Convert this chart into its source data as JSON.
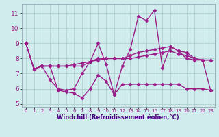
{
  "xlabel": "Windchill (Refroidissement éolien,°C)",
  "x": [
    0,
    1,
    2,
    3,
    4,
    5,
    6,
    7,
    8,
    9,
    10,
    11,
    12,
    13,
    14,
    15,
    16,
    17,
    18,
    19,
    20,
    21,
    22,
    23
  ],
  "series": [
    [
      9.0,
      7.3,
      7.5,
      7.5,
      5.9,
      5.8,
      5.7,
      5.4,
      6.0,
      6.9,
      6.5,
      5.6,
      6.3,
      6.3,
      6.3,
      6.3,
      6.3,
      6.3,
      6.3,
      6.3,
      6.0,
      6.0,
      6.0,
      5.9
    ],
    [
      9.0,
      7.3,
      7.5,
      6.6,
      6.0,
      5.9,
      6.0,
      7.0,
      7.8,
      9.0,
      7.6,
      5.6,
      7.5,
      8.6,
      10.8,
      10.5,
      11.2,
      7.4,
      8.8,
      8.5,
      8.0,
      7.9,
      7.9,
      5.9
    ],
    [
      9.0,
      7.3,
      7.5,
      7.5,
      7.5,
      7.5,
      7.5,
      7.5,
      7.8,
      8.0,
      8.0,
      8.0,
      8.0,
      8.2,
      8.4,
      8.5,
      8.6,
      8.7,
      8.8,
      8.5,
      8.4,
      8.0,
      7.9,
      7.9
    ],
    [
      9.0,
      7.3,
      7.5,
      7.5,
      7.5,
      7.5,
      7.6,
      7.7,
      7.8,
      7.9,
      8.0,
      8.0,
      8.0,
      8.0,
      8.1,
      8.2,
      8.3,
      8.4,
      8.5,
      8.3,
      8.2,
      8.0,
      7.9,
      7.9
    ]
  ],
  "ylim": [
    4.8,
    11.6
  ],
  "yticks": [
    5,
    6,
    7,
    8,
    9,
    10,
    11
  ],
  "xlim": [
    -0.5,
    23.5
  ],
  "line_color": "#9b1d8a",
  "bg_color": "#d0ecec",
  "grid_color": "#aacccc",
  "marker": "D",
  "markersize": 2.5,
  "linewidth": 1.0,
  "tick_color": "#9b1d8a",
  "label_color": "#4b0082",
  "xlabel_fontsize": 6.0,
  "ytick_fontsize": 6.5,
  "xtick_fontsize": 5.0
}
